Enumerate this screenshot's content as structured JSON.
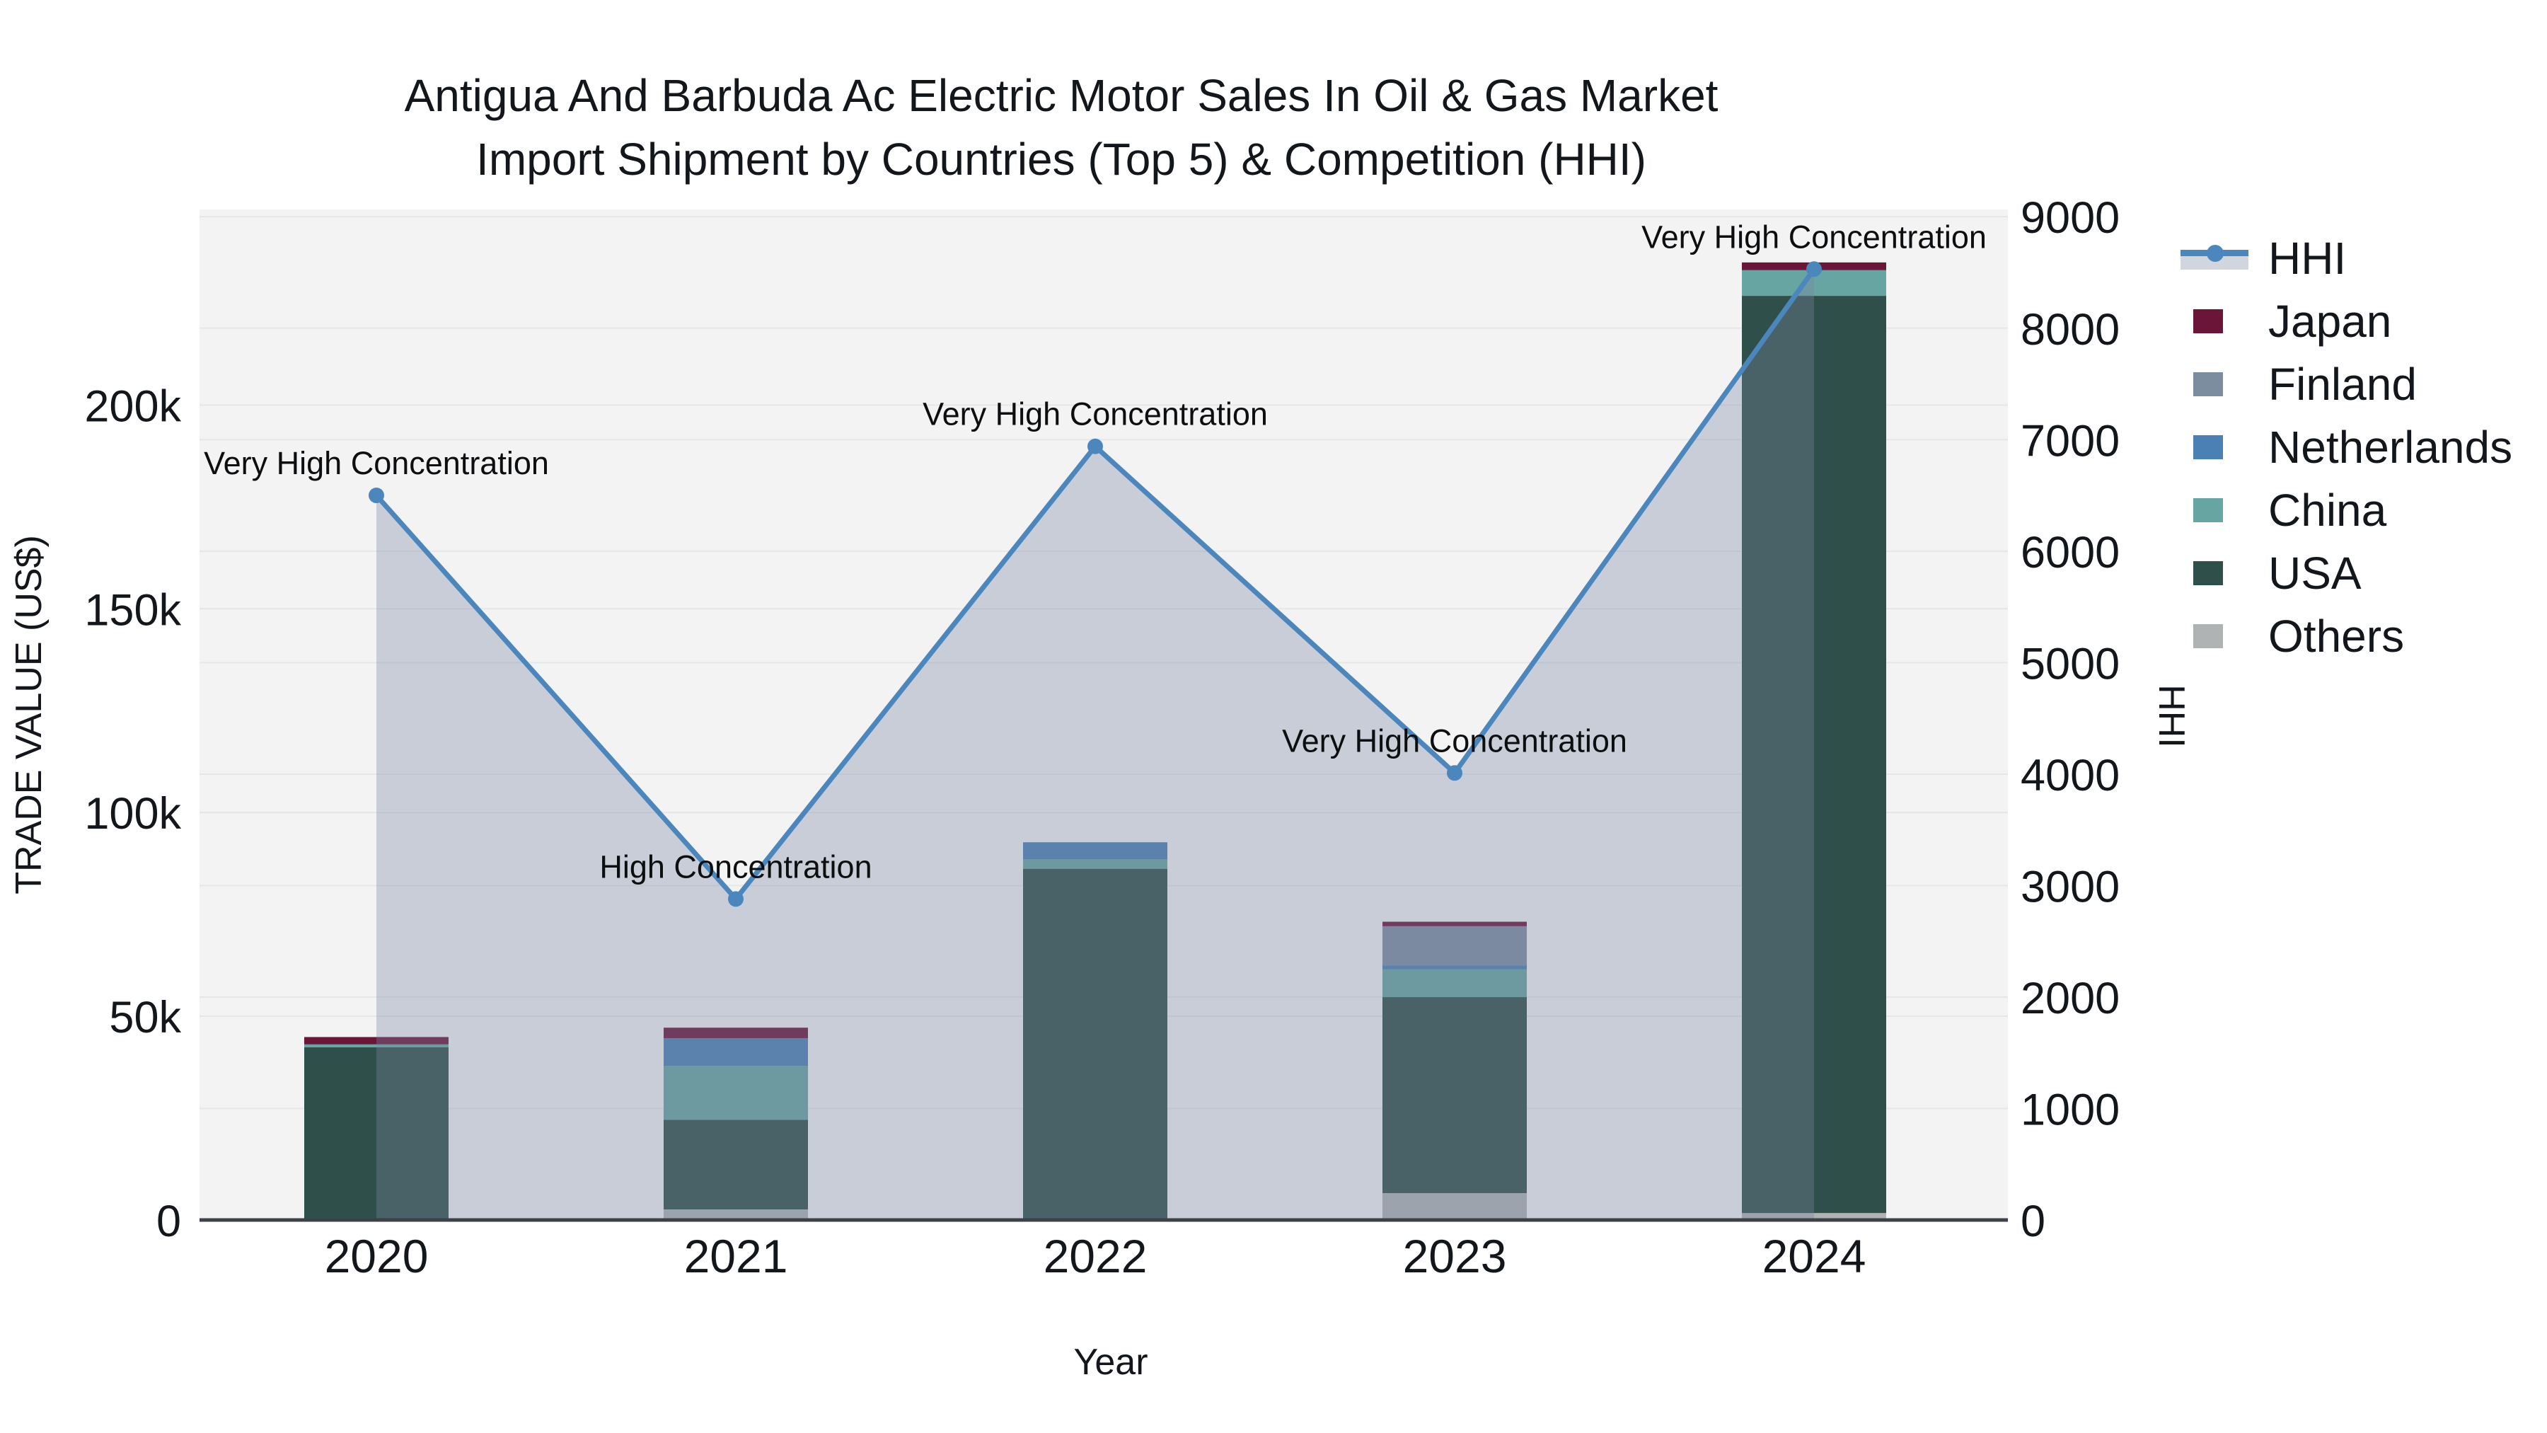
{
  "title": {
    "line1": "Antigua And Barbuda Ac Electric Motor Sales In Oil & Gas Market",
    "line2": "Import Shipment by Countries (Top 5) & Competition (HHI)"
  },
  "legend": {
    "items": [
      {
        "label": "HHI",
        "type": "line"
      },
      {
        "label": "Japan",
        "type": "square"
      },
      {
        "label": "Finland",
        "type": "square"
      },
      {
        "label": "Netherlands",
        "type": "square"
      },
      {
        "label": "China",
        "type": "square"
      },
      {
        "label": "USA",
        "type": "square"
      },
      {
        "label": "Others",
        "type": "square"
      }
    ]
  },
  "colors": {
    "Japan": "#6b1539",
    "Finland": "#7d8da0",
    "Netherlands": "#4a80b4",
    "China": "#67a5a2",
    "USA": "#2f4f4a",
    "Others": "#b0b3b4",
    "hhi_line": "#4b87bd",
    "hhi_fill": "rgba(121,136,160,0.35)",
    "plot_bg": "#f3f3f4",
    "grid": "#e6e7e8",
    "axis_line": "#3c4147",
    "text": "#13161a"
  },
  "chart_data": {
    "type": "combo",
    "categories": [
      "2020",
      "2021",
      "2022",
      "2023",
      "2024"
    ],
    "bar_unit": "US$",
    "stack_order_bottom_to_top": [
      "Others",
      "USA",
      "China",
      "Netherlands",
      "Finland",
      "Japan"
    ],
    "series": [
      {
        "name": "Others",
        "type": "bar",
        "values": [
          0,
          2600,
          0,
          6600,
          1700
        ]
      },
      {
        "name": "USA",
        "type": "bar",
        "values": [
          42400,
          22000,
          86200,
          48100,
          225100
        ]
      },
      {
        "name": "China",
        "type": "bar",
        "values": [
          700,
          13200,
          2300,
          6800,
          6300
        ]
      },
      {
        "name": "Netherlands",
        "type": "bar",
        "values": [
          0,
          6800,
          4200,
          1000,
          0
        ]
      },
      {
        "name": "Finland",
        "type": "bar",
        "values": [
          0,
          0,
          0,
          9600,
          0
        ]
      },
      {
        "name": "Japan",
        "type": "bar",
        "values": [
          1800,
          2600,
          0,
          1100,
          1900
        ]
      }
    ],
    "line_series": {
      "name": "HHI",
      "axis": "right",
      "values": [
        6500,
        2880,
        6940,
        4010,
        8530
      ]
    },
    "annotations": [
      {
        "category": "2020",
        "text": "Very High Concentration"
      },
      {
        "category": "2021",
        "text": "High Concentration"
      },
      {
        "category": "2022",
        "text": "Very High Concentration"
      },
      {
        "category": "2023",
        "text": "Very High Concentration"
      },
      {
        "category": "2024",
        "text": "Very High Concentration"
      }
    ],
    "left_axis": {
      "title": "TRADE VALUE (US$)",
      "range": [
        0,
        248000
      ],
      "ticks": [
        {
          "value": 0,
          "label": "0"
        },
        {
          "value": 50000,
          "label": "50k"
        },
        {
          "value": 100000,
          "label": "100k"
        },
        {
          "value": 150000,
          "label": "150k"
        },
        {
          "value": 200000,
          "label": "200k"
        }
      ],
      "grid": true
    },
    "right_axis": {
      "title": "HHI",
      "range": [
        0,
        9065
      ],
      "ticks": [
        0,
        1000,
        2000,
        3000,
        4000,
        5000,
        6000,
        7000,
        8000,
        9000
      ],
      "grid": true
    },
    "x_axis": {
      "title": "Year"
    },
    "legend_position": "right"
  }
}
